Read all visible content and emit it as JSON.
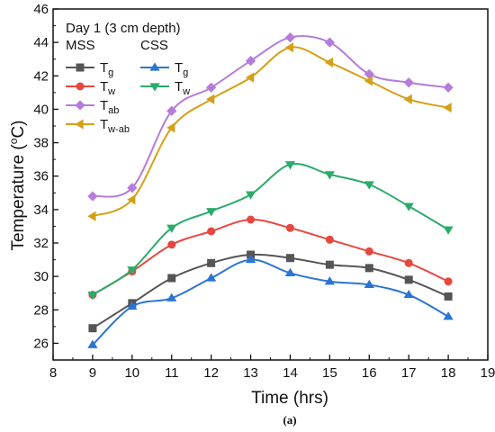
{
  "chart_data": {
    "type": "line",
    "annotation": "Day 1 (3 cm depth)",
    "xlabel": "Time (hrs)",
    "ylabel_main": "Temperature (",
    "ylabel_sup": "o",
    "ylabel_tail": "C)",
    "caption": "(a)",
    "xlim": [
      8,
      19
    ],
    "ylim": [
      25,
      46
    ],
    "xticks": [
      8,
      9,
      10,
      11,
      12,
      13,
      14,
      15,
      16,
      17,
      18,
      19
    ],
    "yticks": [
      26,
      28,
      30,
      32,
      34,
      36,
      38,
      40,
      42,
      44,
      46
    ],
    "grid": false,
    "legend_placement": "top-left",
    "legend_groups": [
      "MSS",
      "CSS"
    ],
    "x": [
      9,
      10,
      11,
      12,
      13,
      14,
      15,
      16,
      17,
      18
    ],
    "series": [
      {
        "group": "MSS",
        "name_main": "T",
        "name_sub": "g",
        "marker": "square",
        "color": "#555555",
        "values": [
          26.9,
          28.4,
          29.9,
          30.8,
          31.3,
          31.1,
          30.7,
          30.5,
          29.8,
          28.8
        ]
      },
      {
        "group": "MSS",
        "name_main": "T",
        "name_sub": "w",
        "marker": "circle",
        "color": "#e8473f",
        "values": [
          28.9,
          30.3,
          31.9,
          32.7,
          33.4,
          32.9,
          32.2,
          31.5,
          30.8,
          29.7
        ]
      },
      {
        "group": "MSS",
        "name_main": "T",
        "name_sub": "ab",
        "marker": "diamond",
        "color": "#b57cdc",
        "values": [
          34.8,
          35.3,
          39.9,
          41.3,
          42.9,
          44.3,
          44.0,
          42.1,
          41.6,
          41.3
        ]
      },
      {
        "group": "MSS",
        "name_main": "T",
        "name_sub": "w-ab",
        "marker": "triangle-left",
        "color": "#d4a017",
        "values": [
          33.6,
          34.6,
          38.9,
          40.6,
          41.9,
          43.7,
          42.8,
          41.7,
          40.6,
          40.1
        ]
      },
      {
        "group": "CSS",
        "name_main": "T",
        "name_sub": "g",
        "marker": "triangle-up",
        "color": "#2a75d3",
        "values": [
          25.9,
          28.2,
          28.7,
          29.9,
          31.0,
          30.2,
          29.7,
          29.5,
          28.9,
          27.6
        ]
      },
      {
        "group": "CSS",
        "name_main": "T",
        "name_sub": "w",
        "marker": "triangle-down",
        "color": "#2bab6a",
        "values": [
          28.9,
          30.4,
          32.9,
          33.9,
          34.9,
          36.7,
          36.1,
          35.5,
          34.2,
          32.8
        ]
      }
    ]
  }
}
